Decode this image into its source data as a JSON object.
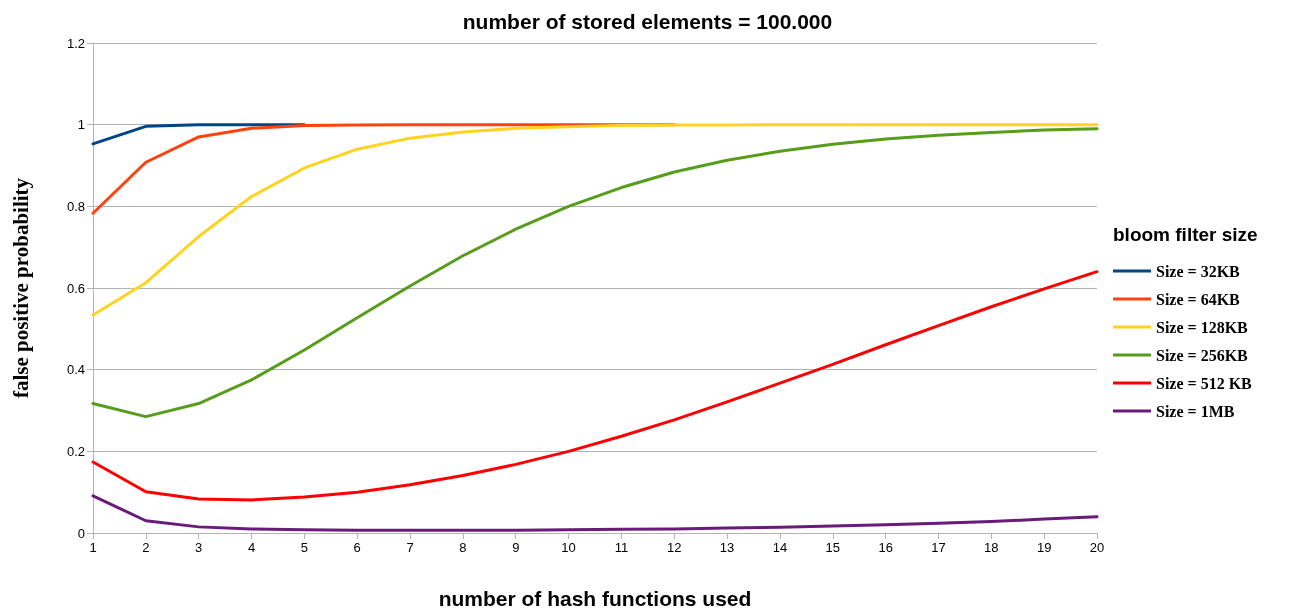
{
  "chart_data": {
    "type": "line",
    "title": "number of stored elements = 100.000",
    "xlabel": "number of hash functions used",
    "ylabel": "false positive probability",
    "legend_title": "bloom filter size",
    "x": [
      1,
      2,
      3,
      4,
      5,
      6,
      7,
      8,
      9,
      10,
      11,
      12,
      13,
      14,
      15,
      16,
      17,
      18,
      19,
      20
    ],
    "series": [
      {
        "name": "Size = 32KB",
        "color": "#004586",
        "values": [
          0.953,
          0.996,
          1,
          1,
          1,
          null,
          null,
          null,
          null,
          null,
          null,
          null,
          null,
          null,
          null,
          null,
          null,
          null,
          null,
          null
        ]
      },
      {
        "name": "Size = 64KB",
        "color": "#ff420e",
        "values": [
          0.783,
          0.908,
          0.97,
          0.991,
          0.998,
          0.999,
          1,
          1,
          1,
          1,
          1,
          1,
          null,
          null,
          null,
          null,
          null,
          null,
          null,
          null
        ]
      },
      {
        "name": "Size = 128KB",
        "color": "#ffd320",
        "values": [
          0.534,
          0.613,
          0.726,
          0.824,
          0.894,
          0.94,
          0.967,
          0.982,
          0.991,
          0.995,
          0.998,
          0.999,
          0.999,
          1,
          1,
          1,
          1,
          1,
          1,
          1
        ]
      },
      {
        "name": "Size = 256KB",
        "color": "#579d1c",
        "values": [
          0.317,
          0.285,
          0.317,
          0.375,
          0.448,
          0.527,
          0.605,
          0.679,
          0.744,
          0.8,
          0.846,
          0.884,
          0.913,
          0.935,
          0.952,
          0.965,
          0.974,
          0.981,
          0.987,
          0.99
        ]
      },
      {
        "name": "Size = 512 KB",
        "color": "#ff0000",
        "values": [
          0.174,
          0.101,
          0.083,
          0.081,
          0.088,
          0.1,
          0.118,
          0.141,
          0.168,
          0.2,
          0.237,
          0.277,
          0.321,
          0.367,
          0.413,
          0.461,
          0.508,
          0.554,
          0.598,
          0.64
        ]
      },
      {
        "name": "Size = 1MB",
        "color": "#6a1b7a",
        "values": [
          0.091,
          0.03,
          0.015,
          0.01,
          0.008,
          0.007,
          0.007,
          0.007,
          0.007,
          0.008,
          0.009,
          0.01,
          0.012,
          0.014,
          0.017,
          0.02,
          0.024,
          0.028,
          0.034,
          0.04
        ]
      }
    ],
    "xlim": [
      1,
      20
    ],
    "xticks": [
      1,
      2,
      3,
      4,
      5,
      6,
      7,
      8,
      9,
      10,
      11,
      12,
      13,
      14,
      15,
      16,
      17,
      18,
      19,
      20
    ],
    "ylim": [
      0,
      1.2
    ],
    "yticks": [
      0,
      0.2,
      0.4,
      0.6,
      0.8,
      1,
      1.2
    ],
    "grid": "y",
    "legend": "right",
    "marker": "none",
    "line_style": "solid"
  }
}
